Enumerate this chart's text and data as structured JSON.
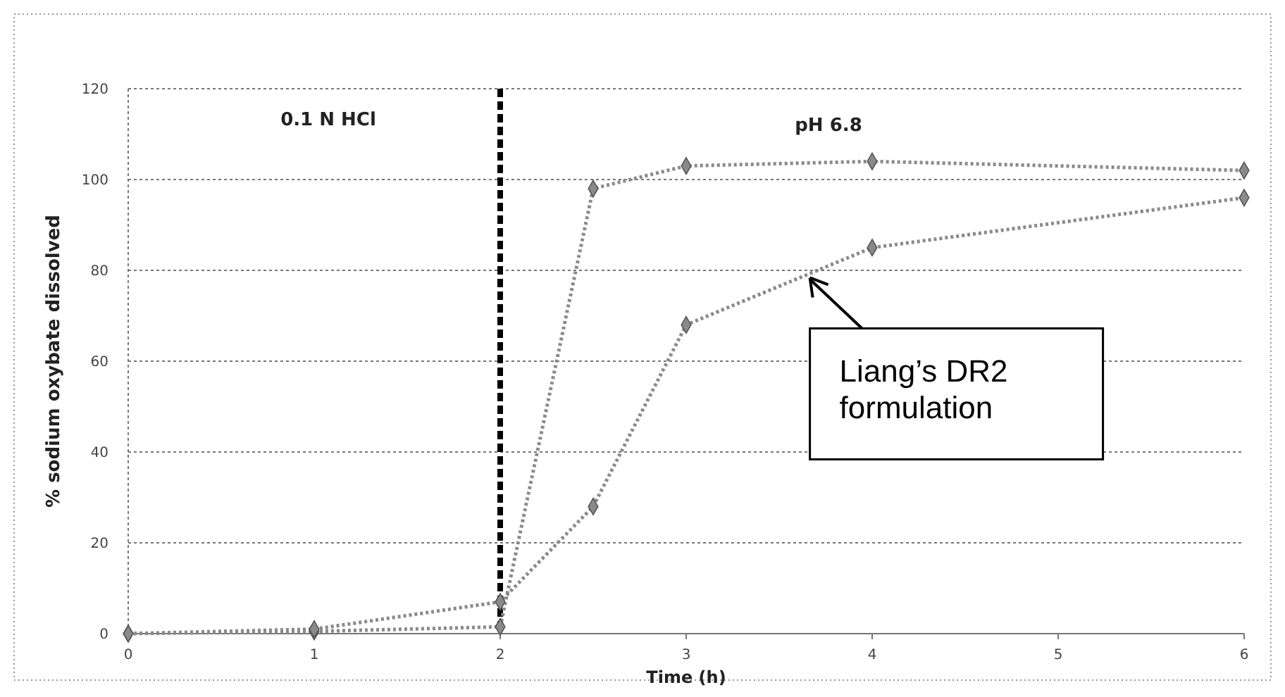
{
  "chart_data": {
    "type": "line",
    "xlabel": "Time (h)",
    "ylabel": "% sodium oxybate dissolved",
    "x": [
      0,
      1,
      2,
      2.5,
      3,
      4,
      6
    ],
    "series": [
      {
        "color": "#8a8a8a",
        "values": [
          0,
          0.5,
          1.5,
          98,
          103,
          104,
          102
        ]
      },
      {
        "color": "#8a8a8a",
        "values": [
          0,
          1,
          7,
          28,
          68,
          85,
          96
        ]
      }
    ],
    "xlim": [
      0,
      6
    ],
    "xticks": [
      0,
      1,
      2,
      3,
      4,
      5,
      6
    ],
    "ylim": [
      0,
      120
    ],
    "yticks": [
      0,
      20,
      40,
      60,
      80,
      100,
      120
    ],
    "grid": "y",
    "marker": "diamond",
    "line_style": "dotted",
    "ref_lines": [
      {
        "axis": "x",
        "value": 2,
        "color": "#000000",
        "line_style": "dashed"
      }
    ],
    "annotations": [
      "0.1 N HCl",
      "pH 6.8",
      {
        "text": "Liang’s DR2 formulation",
        "x": 3.65,
        "y": 79
      }
    ]
  }
}
